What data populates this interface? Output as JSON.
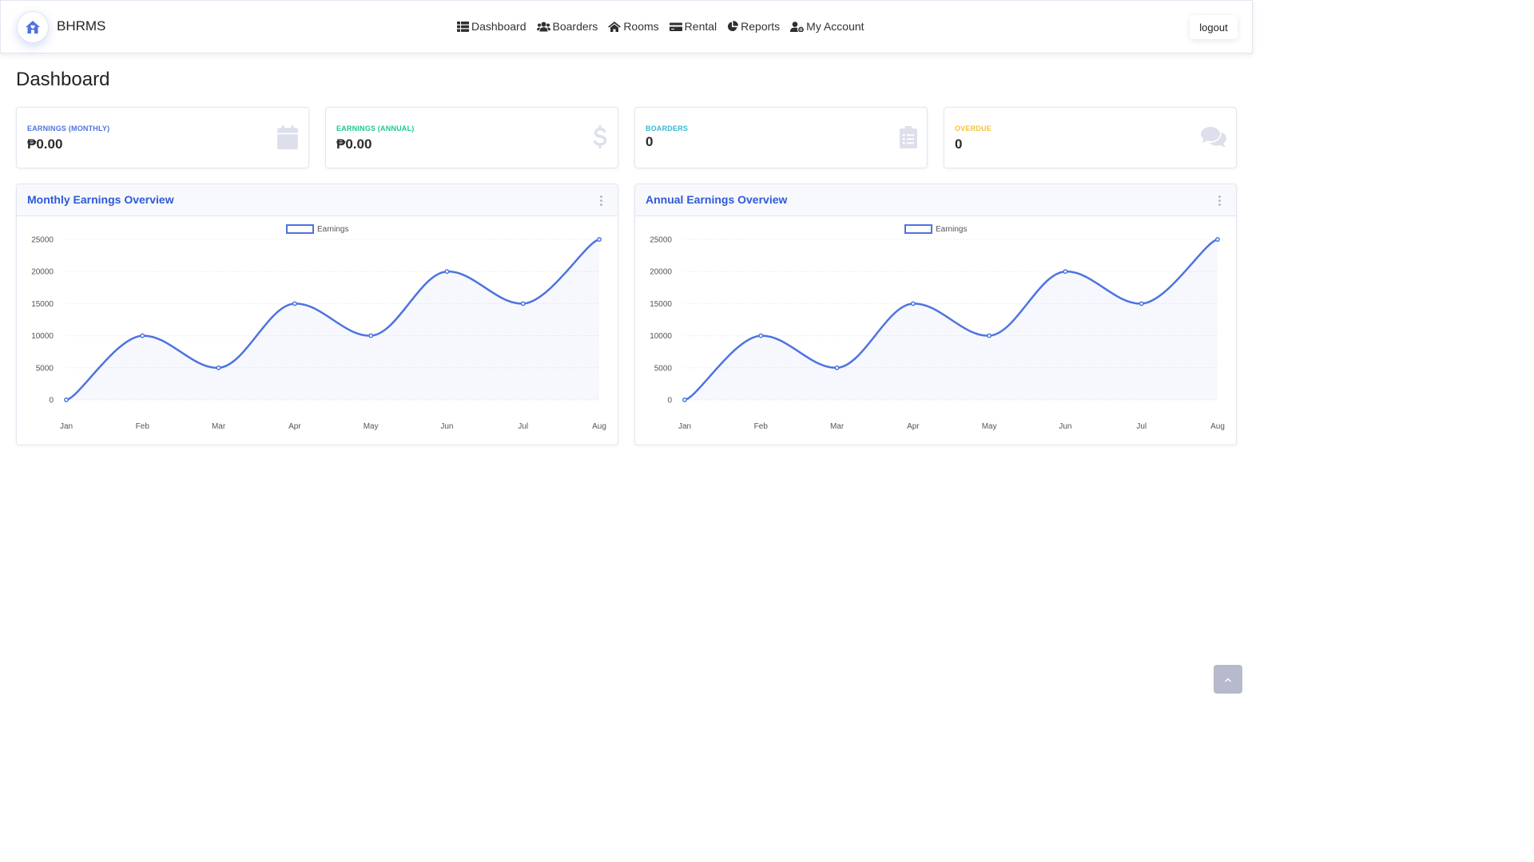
{
  "app": {
    "brand": "BHRMS"
  },
  "nav": {
    "items": [
      {
        "label": "Dashboard",
        "icon": "table-icon"
      },
      {
        "label": "Boarders",
        "icon": "users-icon"
      },
      {
        "label": "Rooms",
        "icon": "home-icon"
      },
      {
        "label": "Rental",
        "icon": "credit-card-icon"
      },
      {
        "label": "Reports",
        "icon": "pie-chart-icon"
      },
      {
        "label": "My Account",
        "icon": "user-cog-icon"
      }
    ],
    "logout_label": "logout"
  },
  "page": {
    "title": "Dashboard"
  },
  "stats": [
    {
      "label": "Earnings (Monthly)",
      "value": "₱0.00",
      "color": "#4e73df",
      "icon": "calendar-icon"
    },
    {
      "label": "Earnings (Annual)",
      "value": "₱0.00",
      "color": "#1cc88a",
      "icon": "dollar-icon"
    },
    {
      "label": "Boarders",
      "value": "0",
      "color": "#36b9cc",
      "icon": "clipboard-list-icon"
    },
    {
      "label": "Overdue",
      "value": "0",
      "color": "#f6c23e",
      "icon": "comments-icon"
    }
  ],
  "chart_data": [
    {
      "type": "line",
      "title": "Monthly Earnings Overview",
      "categories": [
        "Jan",
        "Feb",
        "Mar",
        "Apr",
        "May",
        "Jun",
        "Jul",
        "Aug"
      ],
      "series": [
        {
          "name": "Earnings",
          "values": [
            0,
            10000,
            5000,
            15000,
            10000,
            20000,
            15000,
            25000
          ]
        }
      ],
      "ylim": [
        0,
        25000
      ],
      "yticks": [
        0,
        5000,
        10000,
        15000,
        20000,
        25000
      ],
      "legend": "top-center",
      "grid": true,
      "line_color": "#4e73df"
    },
    {
      "type": "line",
      "title": "Annual Earnings Overview",
      "categories": [
        "Jan",
        "Feb",
        "Mar",
        "Apr",
        "May",
        "Jun",
        "Jul",
        "Aug"
      ],
      "series": [
        {
          "name": "Earnings",
          "values": [
            0,
            10000,
            5000,
            15000,
            10000,
            20000,
            15000,
            25000
          ]
        }
      ],
      "ylim": [
        0,
        25000
      ],
      "yticks": [
        0,
        5000,
        10000,
        15000,
        20000,
        25000
      ],
      "legend": "top-center",
      "grid": true,
      "line_color": "#4e73df"
    }
  ]
}
